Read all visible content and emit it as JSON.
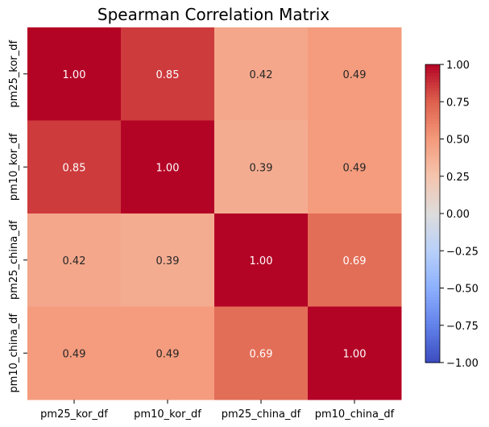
{
  "chart_data": {
    "type": "heatmap",
    "title": "Spearman Correlation Matrix",
    "xlabel": "",
    "ylabel": "",
    "x_categories": [
      "pm25_kor_df",
      "pm10_kor_df",
      "pm25_china_df",
      "pm10_china_df"
    ],
    "y_categories": [
      "pm25_kor_df",
      "pm10_kor_df",
      "pm25_china_df",
      "pm10_china_df"
    ],
    "values": [
      [
        1.0,
        0.85,
        0.42,
        0.49
      ],
      [
        0.85,
        1.0,
        0.39,
        0.49
      ],
      [
        0.42,
        0.39,
        1.0,
        0.69
      ],
      [
        0.49,
        0.49,
        0.69,
        1.0
      ]
    ],
    "value_format": "2 decimals",
    "colormap": "coolwarm",
    "vmin": -1.0,
    "vmax": 1.0,
    "colorbar_ticks": [
      "1.00",
      "0.75",
      "0.50",
      "0.25",
      "0.00",
      "−0.25",
      "−0.50",
      "−0.75",
      "−1.00"
    ],
    "colorbar_tick_values": [
      1.0,
      0.75,
      0.5,
      0.25,
      0.0,
      -0.25,
      -0.5,
      -0.75,
      -1.0
    ],
    "colorbar_position": "right",
    "grid": false,
    "colors": {
      "low": "#3b4cc0",
      "mid": "#dddcdc",
      "high": "#b40426"
    }
  }
}
